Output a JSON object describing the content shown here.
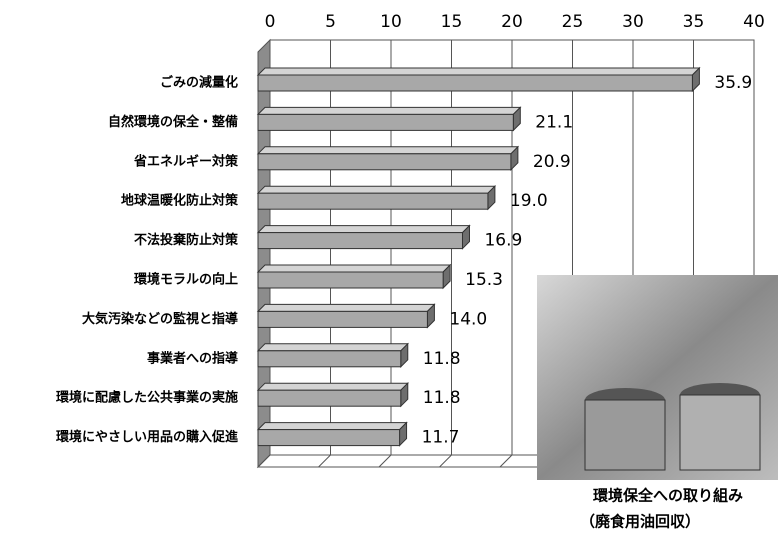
{
  "chart_data": {
    "type": "bar",
    "orientation": "horizontal",
    "categories": [
      "ごみの減量化",
      "自然環境の保全・整備",
      "省エネルギー対策",
      "地球温暖化防止対策",
      "不法投棄防止対策",
      "環境モラルの向上",
      "大気汚染などの監視と指導",
      "事業者への指導",
      "環境に配慮した公共事業の実施",
      "環境にやさしい用品の購入促進"
    ],
    "values": [
      35.9,
      21.1,
      20.9,
      19.0,
      16.9,
      15.3,
      14.0,
      11.8,
      11.8,
      11.7
    ],
    "value_labels": [
      "35.9",
      "21.1",
      "20.9",
      "19.0",
      "16.9",
      "15.3",
      "14.0",
      "11.8",
      "11.8",
      "11.7"
    ],
    "color": "#a8a8a8",
    "xlim": [
      0,
      40
    ],
    "xticks": [
      0,
      5,
      10,
      15,
      20,
      25,
      30,
      35,
      40
    ],
    "grid": true
  },
  "photo": {
    "caption": [
      "環境保全への取り組み",
      "（廃食用油回収）"
    ]
  }
}
